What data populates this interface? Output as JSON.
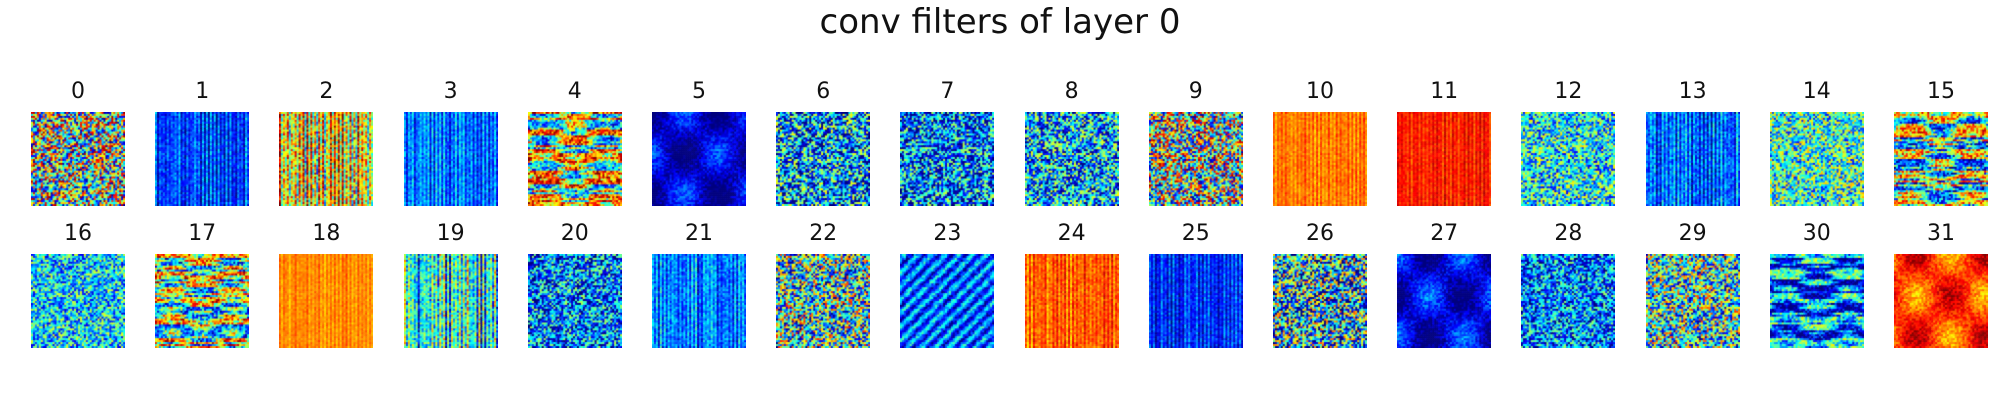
{
  "figure": {
    "title": "conv filters of layer 0",
    "colormap": "jet",
    "panels": [
      {
        "label": "0",
        "pattern": "noise",
        "bias": 0.5,
        "contrast": 1.0,
        "orientation": "mixed"
      },
      {
        "label": "1",
        "pattern": "vertical",
        "bias": 0.18,
        "contrast": 0.45,
        "orientation": "vertical"
      },
      {
        "label": "2",
        "pattern": "vertical",
        "bias": 0.62,
        "contrast": 1.0,
        "orientation": "vertical"
      },
      {
        "label": "3",
        "pattern": "vertical",
        "bias": 0.24,
        "contrast": 0.45,
        "orientation": "vertical"
      },
      {
        "label": "4",
        "pattern": "horizontal",
        "bias": 0.55,
        "contrast": 1.0,
        "orientation": "horizontal"
      },
      {
        "label": "5",
        "pattern": "blob",
        "bias": 0.08,
        "contrast": 0.45,
        "orientation": "mixed"
      },
      {
        "label": "6",
        "pattern": "noise",
        "bias": 0.28,
        "contrast": 0.75,
        "orientation": "mixed"
      },
      {
        "label": "7",
        "pattern": "noise",
        "bias": 0.25,
        "contrast": 0.7,
        "orientation": "mixed"
      },
      {
        "label": "8",
        "pattern": "noise",
        "bias": 0.3,
        "contrast": 0.7,
        "orientation": "diagonal"
      },
      {
        "label": "9",
        "pattern": "noise",
        "bias": 0.5,
        "contrast": 1.0,
        "orientation": "diagonal"
      },
      {
        "label": "10",
        "pattern": "vertical",
        "bias": 0.75,
        "contrast": 0.25,
        "orientation": "vertical"
      },
      {
        "label": "11",
        "pattern": "vertical",
        "bias": 0.85,
        "contrast": 0.25,
        "orientation": "vertical"
      },
      {
        "label": "12",
        "pattern": "noise",
        "bias": 0.38,
        "contrast": 0.6,
        "orientation": "mixed"
      },
      {
        "label": "13",
        "pattern": "vertical",
        "bias": 0.22,
        "contrast": 0.55,
        "orientation": "vertical"
      },
      {
        "label": "14",
        "pattern": "noise",
        "bias": 0.42,
        "contrast": 0.6,
        "orientation": "mixed"
      },
      {
        "label": "15",
        "pattern": "horizontal",
        "bias": 0.45,
        "contrast": 1.0,
        "orientation": "horizontal"
      },
      {
        "label": "16",
        "pattern": "noise",
        "bias": 0.35,
        "contrast": 0.55,
        "orientation": "mixed"
      },
      {
        "label": "17",
        "pattern": "horizontal",
        "bias": 0.5,
        "contrast": 1.0,
        "orientation": "horizontal"
      },
      {
        "label": "18",
        "pattern": "vertical",
        "bias": 0.74,
        "contrast": 0.2,
        "orientation": "vertical"
      },
      {
        "label": "19",
        "pattern": "vertical",
        "bias": 0.38,
        "contrast": 0.9,
        "orientation": "vertical"
      },
      {
        "label": "20",
        "pattern": "noise",
        "bias": 0.25,
        "contrast": 0.65,
        "orientation": "mixed"
      },
      {
        "label": "21",
        "pattern": "vertical",
        "bias": 0.25,
        "contrast": 0.5,
        "orientation": "vertical"
      },
      {
        "label": "22",
        "pattern": "noise",
        "bias": 0.42,
        "contrast": 0.9,
        "orientation": "diagonal"
      },
      {
        "label": "23",
        "pattern": "diagonal",
        "bias": 0.22,
        "contrast": 0.55,
        "orientation": "diagonal"
      },
      {
        "label": "24",
        "pattern": "vertical",
        "bias": 0.78,
        "contrast": 0.35,
        "orientation": "vertical"
      },
      {
        "label": "25",
        "pattern": "vertical",
        "bias": 0.15,
        "contrast": 0.4,
        "orientation": "vertical"
      },
      {
        "label": "26",
        "pattern": "noise",
        "bias": 0.35,
        "contrast": 0.95,
        "orientation": "vertical"
      },
      {
        "label": "27",
        "pattern": "blob",
        "bias": 0.1,
        "contrast": 0.5,
        "orientation": "mixed"
      },
      {
        "label": "28",
        "pattern": "noise",
        "bias": 0.25,
        "contrast": 0.6,
        "orientation": "diagonal"
      },
      {
        "label": "29",
        "pattern": "noise",
        "bias": 0.42,
        "contrast": 0.85,
        "orientation": "diagonal"
      },
      {
        "label": "30",
        "pattern": "horizontal",
        "bias": 0.25,
        "contrast": 0.8,
        "orientation": "horizontal"
      },
      {
        "label": "31",
        "pattern": "blob",
        "bias": 0.82,
        "contrast": 0.45,
        "orientation": "mixed"
      }
    ]
  }
}
